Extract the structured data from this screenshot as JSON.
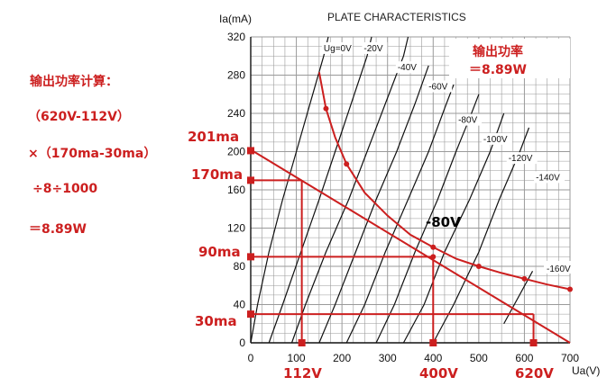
{
  "chart_data": {
    "type": "line",
    "title": "PLATE CHARACTERISTICS",
    "xlabel": "Ua(V)",
    "ylabel": "Ia(mA)",
    "xlim": [
      0,
      700
    ],
    "ylim": [
      0,
      320
    ],
    "x_ticks": [
      "0",
      "100",
      "200",
      "300",
      "400",
      "500",
      "600",
      "700"
    ],
    "y_ticks": [
      "0",
      "40",
      "80",
      "120",
      "160",
      "200",
      "240",
      "280",
      "320"
    ],
    "grid": true,
    "series": [
      {
        "name": "Ug=0V",
        "label_at": [
          160,
          305
        ],
        "points": [
          [
            0,
            0
          ],
          [
            15,
            40
          ],
          [
            40,
            95
          ],
          [
            70,
            150
          ],
          [
            100,
            200
          ],
          [
            130,
            250
          ],
          [
            160,
            300
          ],
          [
            170,
            320
          ]
        ]
      },
      {
        "name": "-20V",
        "label_at": [
          248,
          305
        ],
        "points": [
          [
            40,
            0
          ],
          [
            70,
            40
          ],
          [
            110,
            95
          ],
          [
            150,
            150
          ],
          [
            185,
            200
          ],
          [
            220,
            250
          ],
          [
            255,
            300
          ],
          [
            265,
            320
          ]
        ]
      },
      {
        "name": "-40V",
        "label_at": [
          322,
          285
        ],
        "points": [
          [
            90,
            0
          ],
          [
            120,
            40
          ],
          [
            165,
            95
          ],
          [
            215,
            150
          ],
          [
            255,
            200
          ],
          [
            295,
            250
          ],
          [
            335,
            300
          ],
          [
            345,
            320
          ]
        ]
      },
      {
        "name": "-60V",
        "label_at": [
          390,
          265
        ],
        "points": [
          [
            150,
            0
          ],
          [
            185,
            40
          ],
          [
            230,
            95
          ],
          [
            275,
            150
          ],
          [
            320,
            200
          ],
          [
            360,
            250
          ],
          [
            390,
            290
          ]
        ]
      },
      {
        "name": "-80V",
        "label_at": [
          455,
          230
        ],
        "points": [
          [
            210,
            0
          ],
          [
            250,
            40
          ],
          [
            295,
            95
          ],
          [
            345,
            150
          ],
          [
            390,
            200
          ],
          [
            425,
            245
          ],
          [
            445,
            270
          ]
        ]
      },
      {
        "name": "-100V",
        "label_at": [
          510,
          210
        ],
        "points": [
          [
            275,
            0
          ],
          [
            315,
            40
          ],
          [
            360,
            95
          ],
          [
            410,
            150
          ],
          [
            450,
            200
          ],
          [
            480,
            235
          ],
          [
            500,
            260
          ]
        ]
      },
      {
        "name": "-120V",
        "label_at": [
          565,
          190
        ],
        "points": [
          [
            335,
            0
          ],
          [
            380,
            40
          ],
          [
            425,
            95
          ],
          [
            480,
            150
          ],
          [
            525,
            200
          ],
          [
            555,
            240
          ]
        ]
      },
      {
        "name": "-140V",
        "label_at": [
          625,
          170
        ],
        "points": [
          [
            400,
            0
          ],
          [
            445,
            40
          ],
          [
            500,
            95
          ],
          [
            545,
            150
          ],
          [
            590,
            200
          ],
          [
            610,
            225
          ]
        ]
      }
    ],
    "max_dissipation_curve": [
      [
        150,
        283
      ],
      [
        165,
        245
      ],
      [
        185,
        215
      ],
      [
        210,
        187
      ],
      [
        250,
        157
      ],
      [
        300,
        133
      ],
      [
        350,
        113
      ],
      [
        400,
        100
      ],
      [
        450,
        88
      ],
      [
        500,
        80
      ],
      [
        550,
        73
      ],
      [
        600,
        67
      ],
      [
        650,
        61
      ],
      [
        700,
        56
      ]
    ],
    "load_line": {
      "x": [
        0,
        700
      ],
      "y": [
        202,
        0
      ]
    },
    "operating_point": {
      "label": "-80V",
      "x": 400,
      "y": 90
    },
    "extra_curve_label": "-160V",
    "readings": {
      "ima_labels": [
        "201ma",
        "170ma",
        "90ma",
        "30ma"
      ],
      "ima_values": [
        201,
        170,
        90,
        30
      ],
      "v_labels": [
        "112V",
        "400V",
        "620V"
      ],
      "v_values": [
        112,
        400,
        620
      ]
    },
    "power_box": {
      "line1": "输出功率",
      "line2": "＝8.89W"
    }
  },
  "calculation": {
    "title": "输出功率计算：",
    "line1": "（620V-112V）",
    "line2": "×（170ma-30ma）",
    "line3": "÷8÷1000",
    "line4": "＝8.89W"
  },
  "colors": {
    "annotation": "#cc1f1f",
    "curve": "#111111",
    "grid": "#9a9a9a"
  }
}
